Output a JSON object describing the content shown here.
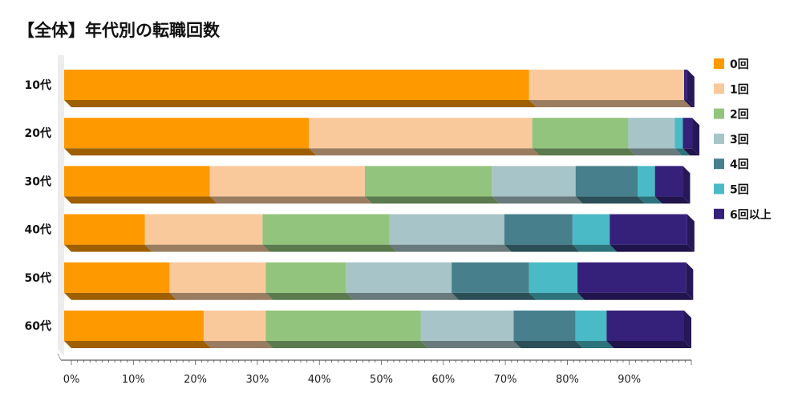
{
  "title": "【全体】年代別の転職回数",
  "chart_data": {
    "type": "bar",
    "orientation": "horizontal",
    "stacked": true,
    "categories": [
      "10代",
      "20代",
      "30代",
      "40代",
      "50代",
      "60代"
    ],
    "series": [
      {
        "name": "0回",
        "color": "#FF9900",
        "values": [
          75,
          39.5,
          23.5,
          13,
          17,
          22.5
        ]
      },
      {
        "name": "1回",
        "color": "#F9C99C",
        "values": [
          25,
          36,
          25,
          19,
          15.5,
          10
        ]
      },
      {
        "name": "2回",
        "color": "#93C47D",
        "values": [
          0,
          15.5,
          20.5,
          20.5,
          13,
          25
        ]
      },
      {
        "name": "3回",
        "color": "#A7C4C8",
        "values": [
          0,
          7.5,
          13.5,
          18.5,
          17,
          15
        ]
      },
      {
        "name": "4回",
        "color": "#477F8C",
        "values": [
          0,
          0,
          10,
          11,
          12.5,
          10
        ]
      },
      {
        "name": "5回",
        "color": "#49BAC6",
        "values": [
          0,
          1.3,
          2.8,
          6,
          7.8,
          5
        ]
      },
      {
        "name": "6回以上",
        "color": "#35207A",
        "values": [
          0.5,
          1.5,
          4.5,
          12.5,
          17.5,
          12.5
        ]
      }
    ],
    "x_ticks": [
      "0%",
      "10%",
      "20%",
      "30%",
      "40%",
      "50%",
      "60%",
      "70%",
      "80%",
      "90%"
    ],
    "xlim": [
      0,
      100
    ],
    "legend_position": "right",
    "grid": false
  }
}
